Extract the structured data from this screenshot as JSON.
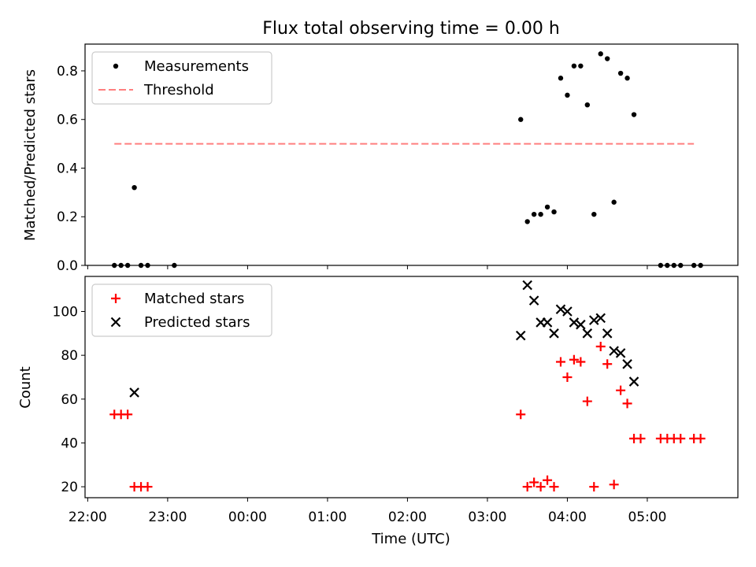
{
  "chart_data": [
    {
      "type": "scatter",
      "title": "Flux total observing time = 0.00 h",
      "ylabel": "Matched/Predicted stars",
      "xlabel": "",
      "xlim": [
        "21:58",
        "06:08"
      ],
      "ylim": [
        0,
        0.91
      ],
      "yticks": [
        "0.0",
        "0.2",
        "0.4",
        "0.6",
        "0.8"
      ],
      "legend": {
        "placement": "top-left",
        "entries": [
          "Measurements",
          "Threshold"
        ]
      },
      "series": [
        {
          "name": "Measurements",
          "marker": "dot",
          "color": "#000000",
          "x": [
            "22:20",
            "22:25",
            "22:30",
            "22:35",
            "22:40",
            "22:45",
            "23:05",
            "03:25",
            "03:30",
            "03:35",
            "03:40",
            "03:45",
            "03:50",
            "03:55",
            "04:00",
            "04:05",
            "04:10",
            "04:15",
            "04:20",
            "04:25",
            "04:30",
            "04:35",
            "04:40",
            "04:45",
            "04:50",
            "05:10",
            "05:15",
            "05:20",
            "05:25",
            "05:35",
            "05:40"
          ],
          "y": [
            0.0,
            0.0,
            0.0,
            0.32,
            0.0,
            0.0,
            0.0,
            0.6,
            0.18,
            0.21,
            0.21,
            0.24,
            0.22,
            0.77,
            0.7,
            0.82,
            0.82,
            0.66,
            0.21,
            0.87,
            0.85,
            0.26,
            0.79,
            0.77,
            0.62,
            0.0,
            0.0,
            0.0,
            0.0,
            0.0,
            0.0
          ]
        },
        {
          "name": "Threshold",
          "style": "dashed",
          "color": "#ff7f7f",
          "x": [
            "22:20",
            "05:35"
          ],
          "y": [
            0.5,
            0.5
          ]
        }
      ]
    },
    {
      "type": "scatter",
      "title": "",
      "ylabel": "Count",
      "xlabel": "Time (UTC)",
      "xlim": [
        "21:58",
        "06:08"
      ],
      "ylim": [
        15,
        116
      ],
      "yticks": [
        "20",
        "40",
        "60",
        "80",
        "100"
      ],
      "xticks": [
        "22:00",
        "23:00",
        "00:00",
        "01:00",
        "02:00",
        "03:00",
        "04:00",
        "05:00"
      ],
      "legend": {
        "placement": "top-left",
        "entries": [
          "Matched stars",
          "Predicted stars"
        ]
      },
      "series": [
        {
          "name": "Matched stars",
          "marker": "plus",
          "color": "#ff0000",
          "x": [
            "22:20",
            "22:25",
            "22:30",
            "22:35",
            "22:40",
            "22:45",
            "03:25",
            "03:30",
            "03:35",
            "03:40",
            "03:45",
            "03:50",
            "03:55",
            "04:00",
            "04:05",
            "04:10",
            "04:15",
            "04:20",
            "04:25",
            "04:30",
            "04:35",
            "04:40",
            "04:45",
            "04:50",
            "04:55",
            "05:10",
            "05:15",
            "05:20",
            "05:25",
            "05:35",
            "05:40"
          ],
          "y": [
            53,
            53,
            53,
            20,
            20,
            20,
            53,
            20,
            22,
            20,
            23,
            20,
            77,
            70,
            78,
            77,
            59,
            20,
            84,
            76,
            21,
            64,
            58,
            42,
            42,
            42,
            42,
            42,
            42,
            42,
            42
          ]
        },
        {
          "name": "Predicted stars",
          "marker": "x",
          "color": "#000000",
          "x": [
            "22:35",
            "03:25",
            "03:30",
            "03:35",
            "03:40",
            "03:45",
            "03:50",
            "03:55",
            "04:00",
            "04:05",
            "04:10",
            "04:15",
            "04:20",
            "04:25",
            "04:30",
            "04:35",
            "04:40",
            "04:45",
            "04:50"
          ],
          "y": [
            63,
            89,
            112,
            105,
            95,
            95,
            90,
            101,
            100,
            95,
            94,
            90,
            96,
            97,
            90,
            82,
            81,
            76,
            68
          ]
        }
      ]
    }
  ]
}
